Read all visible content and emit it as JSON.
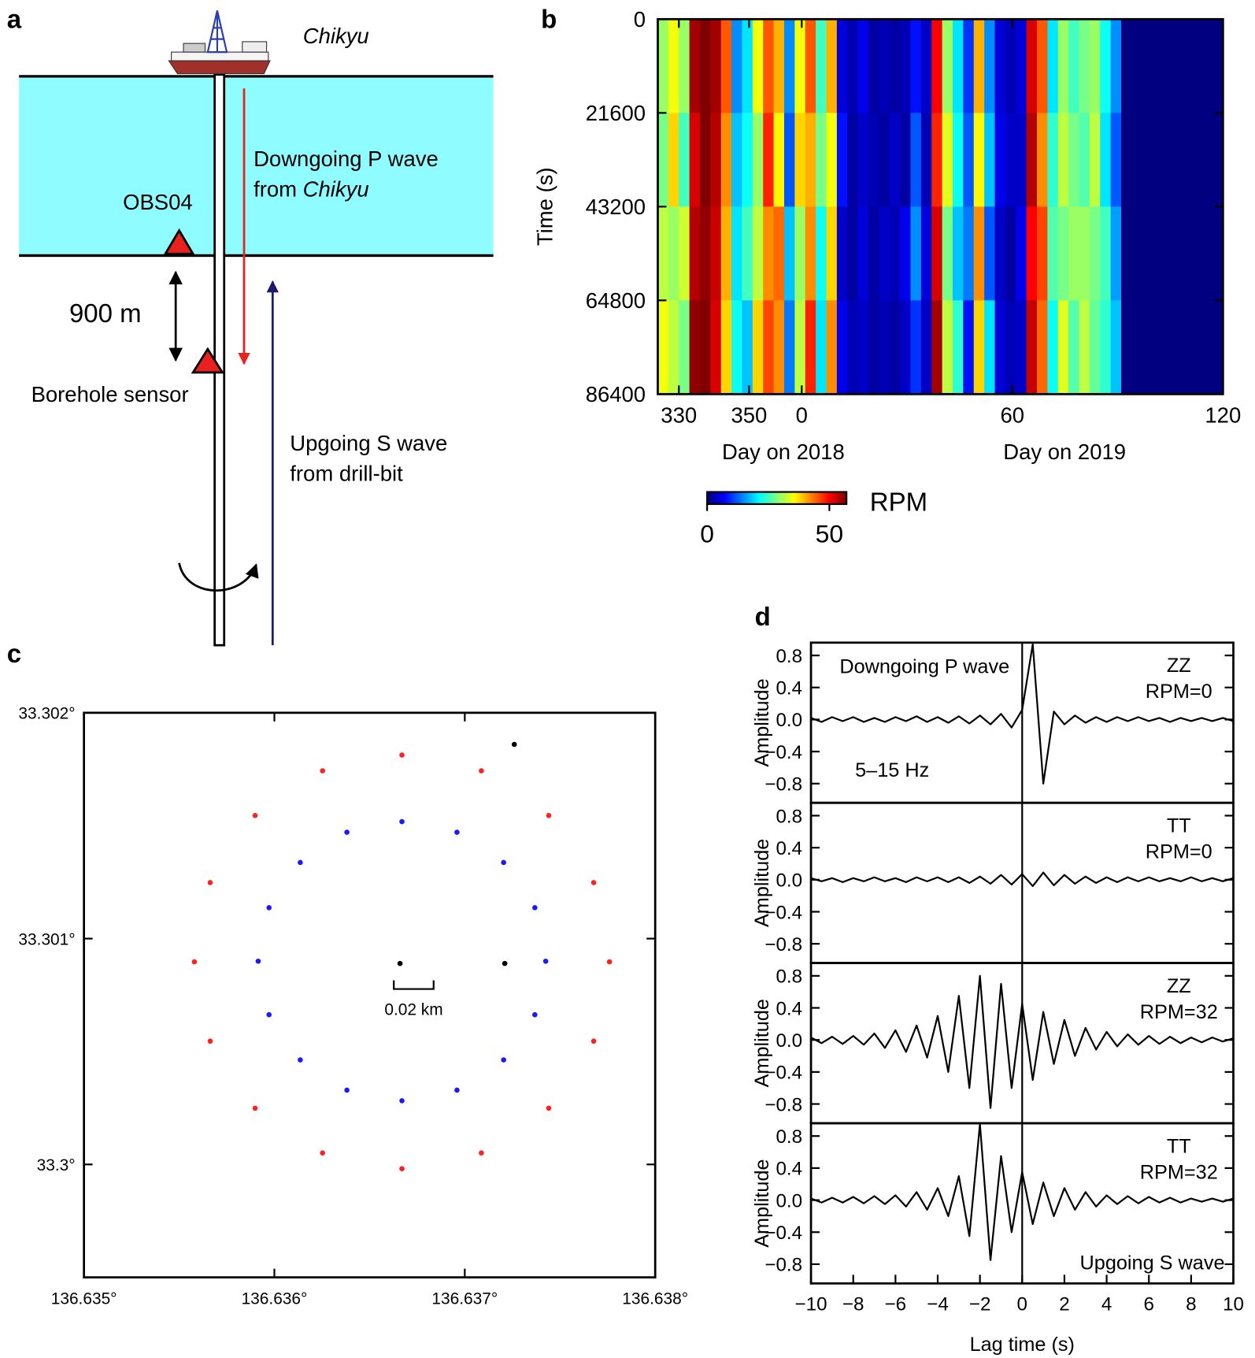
{
  "panel_labels": [
    "a",
    "b",
    "c",
    "d"
  ],
  "diagram": {
    "ship": "Chikyu",
    "p_wave_line1": "Downgoing P wave",
    "p_wave_line2": "from ",
    "p_wave_line2_ship": "Chikyu",
    "obs": "OBS04",
    "distance": "900 m",
    "borehole": "Borehole sensor",
    "s_wave_line1": "Upgoing S wave",
    "s_wave_line2": "from drill-bit"
  },
  "chart_data": [
    {
      "type": "heatmap",
      "ylabel": "Time (s)",
      "xlabels": [
        "Day on 2018",
        "Day on 2019"
      ],
      "xlim": [
        -41,
        120
      ],
      "xticks": [
        {
          "value": -35,
          "label": "330"
        },
        {
          "value": -15,
          "label": "350"
        },
        0,
        60,
        120
      ],
      "ylim": [
        0,
        86400
      ],
      "yticks": [
        0,
        21600,
        43200,
        64800,
        86400
      ],
      "y_inverted": true,
      "xbins": [
        -41,
        -38,
        -35,
        -32,
        -29,
        -26,
        -23,
        -20,
        -17,
        -14,
        -11,
        -8,
        -5,
        -2,
        1,
        4,
        7,
        10,
        13,
        16,
        19,
        22,
        25,
        28,
        31,
        34,
        37,
        40,
        43,
        46,
        49,
        52,
        55,
        58,
        61,
        64,
        67,
        70,
        73,
        76,
        79,
        82,
        85,
        88,
        91,
        120
      ],
      "ybins": [
        0,
        21600,
        43200,
        64800,
        86400
      ],
      "z": [
        [
          30,
          35,
          30,
          55,
          57,
          55,
          45,
          15,
          20,
          35,
          45,
          40,
          15,
          35,
          45,
          25,
          40,
          5,
          3,
          6,
          2,
          3,
          2,
          3,
          8,
          4,
          50,
          30,
          20,
          10,
          40,
          15,
          5,
          3,
          5,
          52,
          45,
          20,
          30,
          25,
          28,
          30,
          22,
          15,
          0
        ],
        [
          28,
          38,
          25,
          52,
          57,
          54,
          42,
          18,
          22,
          30,
          48,
          36,
          12,
          38,
          40,
          28,
          35,
          8,
          2,
          4,
          3,
          2,
          4,
          2,
          12,
          3,
          48,
          34,
          22,
          12,
          36,
          18,
          6,
          4,
          4,
          54,
          42,
          24,
          32,
          28,
          26,
          32,
          20,
          12,
          0
        ],
        [
          32,
          30,
          33,
          54,
          56,
          53,
          40,
          20,
          25,
          32,
          42,
          44,
          18,
          30,
          42,
          22,
          38,
          4,
          2,
          5,
          2,
          4,
          3,
          6,
          15,
          5,
          52,
          28,
          18,
          14,
          42,
          12,
          4,
          2,
          6,
          50,
          46,
          26,
          28,
          30,
          30,
          28,
          25,
          16,
          0
        ],
        [
          35,
          32,
          28,
          56,
          57,
          52,
          38,
          22,
          18,
          38,
          46,
          42,
          14,
          32,
          48,
          20,
          42,
          6,
          3,
          4,
          2,
          3,
          2,
          4,
          10,
          4,
          55,
          32,
          24,
          8,
          38,
          20,
          5,
          3,
          4,
          53,
          44,
          22,
          34,
          26,
          32,
          27,
          24,
          18,
          0
        ]
      ],
      "colormap": "jet",
      "zlim": [
        0,
        57
      ],
      "colorbar_ticks": [
        0,
        50
      ],
      "colorbar_label": "RPM"
    },
    {
      "type": "scatter",
      "annotation": "0.02 km",
      "xlim": [
        136.635,
        136.638
      ],
      "xticks": [
        {
          "value": 136.635,
          "label": "136.635°"
        },
        {
          "value": 136.636,
          "label": "136.636°"
        },
        {
          "value": 136.637,
          "label": "136.637°"
        },
        {
          "value": 136.638,
          "label": "136.638°"
        }
      ],
      "ylim": [
        33.2995,
        33.302
      ],
      "yticks": [
        {
          "value": 33.3,
          "label": "33.3°"
        },
        {
          "value": 33.301,
          "label": "33.301°"
        },
        {
          "value": 33.302,
          "label": "33.302°"
        }
      ],
      "series": [
        {
          "color": "#ff2020",
          "x": [
            136.63776,
            136.637677,
            136.637441,
            136.637087,
            136.63667,
            136.636253,
            136.635899,
            136.635663,
            136.63558,
            136.635663,
            136.635899,
            136.636253,
            136.63667,
            136.637087,
            136.637441,
            136.637677
          ],
          "y": [
            33.300897,
            33.301248,
            33.301545,
            33.301743,
            33.301813,
            33.301743,
            33.301545,
            33.301248,
            33.300897,
            33.300546,
            33.300249,
            33.300051,
            33.299981,
            33.300051,
            33.300249,
            33.300546
          ]
        },
        {
          "color": "#1a1aff",
          "x": [
            136.637425,
            136.637368,
            136.637204,
            136.636959,
            136.63667,
            136.636381,
            136.636136,
            136.635972,
            136.635915,
            136.635972,
            136.636136,
            136.636381,
            136.63667,
            136.636959,
            136.637204,
            136.637368
          ],
          "y": [
            33.3009,
            33.301137,
            33.301337,
            33.301471,
            33.301518,
            33.301471,
            33.301337,
            33.301137,
            33.3009,
            33.300663,
            33.300463,
            33.300329,
            33.300282,
            33.300329,
            33.300463,
            33.300663
          ]
        },
        {
          "color": "#000000",
          "x": [
            136.63666,
            136.63721,
            136.63726
          ],
          "y": [
            33.30089,
            33.30089,
            33.30186
          ]
        }
      ]
    },
    {
      "type": "line",
      "ylabel": "Amplitude",
      "note": "Downgoing P wave",
      "label_lines": [
        "ZZ",
        "RPM=0"
      ],
      "filter_note": "5–15 Hz",
      "xlim": [
        -10,
        10
      ],
      "ylim": [
        -1.04,
        0.96
      ],
      "reference_line_x": 0,
      "yticks": [
        0.8,
        0.4,
        {
          "value": 0,
          "label": "0.0"
        },
        {
          "value": -0.4,
          "label": "−0.4"
        },
        {
          "value": -0.8,
          "label": "−0.8"
        }
      ],
      "x": [
        -10,
        -9.5,
        -9,
        -8.5,
        -8,
        -7.5,
        -7,
        -6.5,
        -6,
        -5.5,
        -5,
        -4.5,
        -4,
        -3.5,
        -3,
        -2.5,
        -2,
        -1.5,
        -1,
        -0.5,
        0,
        0.5,
        1,
        1.5,
        2,
        2.5,
        3,
        3.5,
        4,
        4.5,
        5,
        5.5,
        6,
        6.5,
        7,
        7.5,
        8,
        8.5,
        9,
        9.5,
        10
      ],
      "series": [
        {
          "color": "#000000",
          "values": [
            0.02,
            -0.03,
            0.03,
            -0.02,
            0.03,
            -0.03,
            0.02,
            -0.03,
            0.03,
            -0.02,
            0.04,
            -0.03,
            0.03,
            -0.04,
            0.04,
            -0.05,
            0.05,
            -0.06,
            0.07,
            -0.1,
            0.12,
            0.94,
            -0.8,
            0.1,
            -0.06,
            0.05,
            -0.04,
            0.03,
            -0.03,
            0.03,
            -0.02,
            0.03,
            -0.02,
            0.02,
            -0.03,
            0.02,
            -0.02,
            0.02,
            -0.02,
            0.02,
            -0.02
          ]
        }
      ]
    },
    {
      "type": "line",
      "ylabel": "Amplitude",
      "label_lines": [
        "TT",
        "RPM=0"
      ],
      "xlim": [
        -10,
        10
      ],
      "ylim": [
        -1.04,
        0.96
      ],
      "reference_line_x": 0,
      "yticks": [
        0.8,
        0.4,
        {
          "value": 0,
          "label": "0.0"
        },
        {
          "value": -0.4,
          "label": "−0.4"
        },
        {
          "value": -0.8,
          "label": "−0.8"
        }
      ],
      "x": [
        -10,
        -9.5,
        -9,
        -8.5,
        -8,
        -7.5,
        -7,
        -6.5,
        -6,
        -5.5,
        -5,
        -4.5,
        -4,
        -3.5,
        -3,
        -2.5,
        -2,
        -1.5,
        -1,
        -0.5,
        0,
        0.5,
        1,
        1.5,
        2,
        2.5,
        3,
        3.5,
        4,
        4.5,
        5,
        5.5,
        6,
        6.5,
        7,
        7.5,
        8,
        8.5,
        9,
        9.5,
        10
      ],
      "series": [
        {
          "color": "#000000",
          "values": [
            0.02,
            -0.02,
            0.02,
            -0.03,
            0.02,
            -0.02,
            0.03,
            -0.02,
            0.02,
            -0.03,
            0.03,
            -0.02,
            0.03,
            -0.03,
            0.03,
            -0.04,
            0.04,
            -0.05,
            0.06,
            -0.06,
            0.07,
            -0.08,
            0.09,
            -0.07,
            0.06,
            -0.05,
            0.04,
            -0.04,
            0.03,
            -0.03,
            0.03,
            -0.02,
            0.03,
            -0.02,
            0.02,
            -0.02,
            0.03,
            -0.02,
            0.02,
            -0.02,
            0.02
          ]
        }
      ]
    },
    {
      "type": "line",
      "ylabel": "Amplitude",
      "label_lines": [
        "ZZ",
        "RPM=32"
      ],
      "xlim": [
        -10,
        10
      ],
      "ylim": [
        -1.04,
        0.96
      ],
      "reference_line_x": 0,
      "yticks": [
        0.8,
        0.4,
        {
          "value": 0,
          "label": "0.0"
        },
        {
          "value": -0.4,
          "label": "−0.4"
        },
        {
          "value": -0.8,
          "label": "−0.8"
        }
      ],
      "x": [
        -10,
        -9.5,
        -9,
        -8.5,
        -8,
        -7.5,
        -7,
        -6.5,
        -6,
        -5.5,
        -5,
        -4.5,
        -4,
        -3.5,
        -3,
        -2.5,
        -2,
        -1.5,
        -1,
        -0.5,
        0,
        0.5,
        1,
        1.5,
        2,
        2.5,
        3,
        3.5,
        4,
        4.5,
        5,
        5.5,
        6,
        6.5,
        7,
        7.5,
        8,
        8.5,
        9,
        9.5,
        10
      ],
      "series": [
        {
          "color": "#000000",
          "values": [
            0.03,
            -0.04,
            0.04,
            -0.05,
            0.05,
            -0.06,
            0.08,
            -0.1,
            0.12,
            -0.15,
            0.18,
            -0.22,
            0.3,
            -0.4,
            0.55,
            -0.6,
            0.8,
            -0.85,
            0.7,
            -0.6,
            0.45,
            -0.5,
            0.35,
            -0.3,
            0.25,
            -0.2,
            0.15,
            -0.12,
            0.1,
            -0.08,
            0.07,
            -0.06,
            0.05,
            -0.05,
            0.04,
            -0.04,
            0.03,
            -0.03,
            0.03,
            -0.02,
            0.02
          ]
        }
      ]
    },
    {
      "type": "line",
      "ylabel": "Amplitude",
      "xlabel": "Lag time (s)",
      "label_lines": [
        "TT",
        "RPM=32"
      ],
      "bottom_note": "Upgoing S wave",
      "xlim": [
        -10,
        10
      ],
      "ylim": [
        -1.04,
        0.96
      ],
      "reference_line_x": 0,
      "xticks": [
        {
          "value": -10,
          "label": "−10"
        },
        {
          "value": -8,
          "label": "−8"
        },
        {
          "value": -6,
          "label": "−6"
        },
        {
          "value": -4,
          "label": "−4"
        },
        {
          "value": -2,
          "label": "−2"
        },
        0,
        2,
        4,
        6,
        8,
        10
      ],
      "yticks": [
        0.8,
        0.4,
        {
          "value": 0,
          "label": "0.0"
        },
        {
          "value": -0.4,
          "label": "−0.4"
        },
        {
          "value": -0.8,
          "label": "−0.8"
        }
      ],
      "x": [
        -10,
        -9.5,
        -9,
        -8.5,
        -8,
        -7.5,
        -7,
        -6.5,
        -6,
        -5.5,
        -5,
        -4.5,
        -4,
        -3.5,
        -3,
        -2.5,
        -2,
        -1.5,
        -1,
        -0.5,
        0,
        0.5,
        1,
        1.5,
        2,
        2.5,
        3,
        3.5,
        4,
        4.5,
        5,
        5.5,
        6,
        6.5,
        7,
        7.5,
        8,
        8.5,
        9,
        9.5,
        10
      ],
      "series": [
        {
          "color": "#000000",
          "values": [
            0.02,
            -0.03,
            0.03,
            -0.03,
            0.04,
            -0.04,
            0.05,
            -0.05,
            0.06,
            -0.08,
            0.1,
            -0.12,
            0.15,
            -0.2,
            0.3,
            -0.45,
            0.95,
            -0.75,
            0.55,
            -0.4,
            0.35,
            -0.3,
            0.22,
            -0.2,
            0.15,
            -0.12,
            0.1,
            -0.08,
            0.06,
            -0.05,
            0.05,
            -0.04,
            0.04,
            -0.03,
            0.03,
            -0.03,
            0.02,
            -0.02,
            0.02,
            -0.02,
            0.02
          ]
        }
      ]
    }
  ]
}
